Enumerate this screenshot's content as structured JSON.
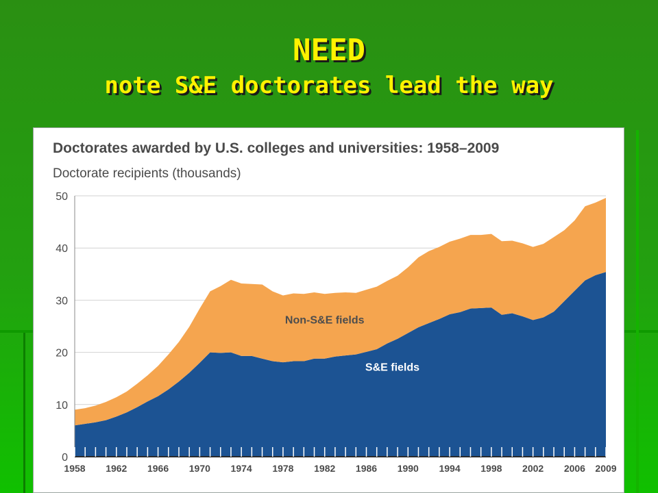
{
  "slide": {
    "title_line1": "NEED",
    "title_line2": "note S&E doctorates lead the way"
  },
  "colors": {
    "background": "#23a010",
    "title": "#fff200",
    "se_fields": "#1c5393",
    "non_se_fields": "#f5a54f",
    "axis_text": "#4a4a4a"
  },
  "chart_data": {
    "type": "area",
    "stacked": true,
    "title": "Doctorates awarded by U.S. colleges and universities: 1958–2009",
    "ylabel": "Doctorate recipients (thousands)",
    "xlabel": "",
    "ylim": [
      0,
      50
    ],
    "xlim": [
      1958,
      2009
    ],
    "grid": true,
    "y_ticks": [
      "0",
      "10",
      "20",
      "30",
      "40",
      "50"
    ],
    "x_ticks": [
      "1958",
      "1962",
      "1966",
      "1970",
      "1974",
      "1978",
      "1982",
      "1986",
      "1990",
      "1994",
      "1998",
      "2002",
      "2006",
      "2009"
    ],
    "x": [
      1958,
      1959,
      1960,
      1961,
      1962,
      1963,
      1964,
      1965,
      1966,
      1967,
      1968,
      1969,
      1970,
      1971,
      1972,
      1973,
      1974,
      1975,
      1976,
      1977,
      1978,
      1979,
      1980,
      1981,
      1982,
      1983,
      1984,
      1985,
      1986,
      1987,
      1988,
      1989,
      1990,
      1991,
      1992,
      1993,
      1994,
      1995,
      1996,
      1997,
      1998,
      1999,
      2000,
      2001,
      2002,
      2003,
      2004,
      2005,
      2006,
      2007,
      2008,
      2009
    ],
    "series": [
      {
        "name": "S&E fields",
        "color": "#1c5393",
        "values": [
          6.0,
          6.3,
          6.6,
          7.0,
          7.7,
          8.5,
          9.5,
          10.6,
          11.6,
          12.9,
          14.4,
          16.1,
          18.0,
          20.0,
          19.9,
          20.0,
          19.3,
          19.3,
          18.8,
          18.3,
          18.1,
          18.3,
          18.3,
          18.8,
          18.8,
          19.2,
          19.4,
          19.6,
          20.1,
          20.6,
          21.7,
          22.6,
          23.7,
          24.8,
          25.6,
          26.4,
          27.3,
          27.7,
          28.4,
          28.5,
          28.6,
          27.2,
          27.5,
          26.9,
          26.2,
          26.7,
          27.8,
          29.8,
          31.8,
          33.8,
          34.8,
          35.4
        ]
      },
      {
        "name": "Non-S&E fields",
        "color": "#f5a54f",
        "values": [
          3.0,
          3.0,
          3.2,
          3.5,
          3.7,
          4.0,
          4.5,
          5.0,
          5.8,
          6.7,
          7.6,
          8.8,
          10.4,
          11.7,
          12.8,
          13.9,
          13.9,
          13.8,
          14.2,
          13.4,
          12.8,
          13.0,
          12.9,
          12.7,
          12.4,
          12.2,
          12.1,
          11.8,
          11.9,
          12.0,
          12.0,
          12.1,
          12.6,
          13.4,
          13.8,
          13.8,
          13.9,
          14.1,
          14.1,
          14.0,
          14.1,
          14.1,
          13.9,
          14.0,
          14.0,
          14.1,
          14.3,
          13.6,
          13.5,
          14.2,
          13.9,
          14.2
        ]
      }
    ],
    "annotations": [
      {
        "text": "Non-S&E fields",
        "x": 1982,
        "y": 25.5
      },
      {
        "text": "S&E fields",
        "x": 1988.5,
        "y": 16.5
      }
    ]
  }
}
